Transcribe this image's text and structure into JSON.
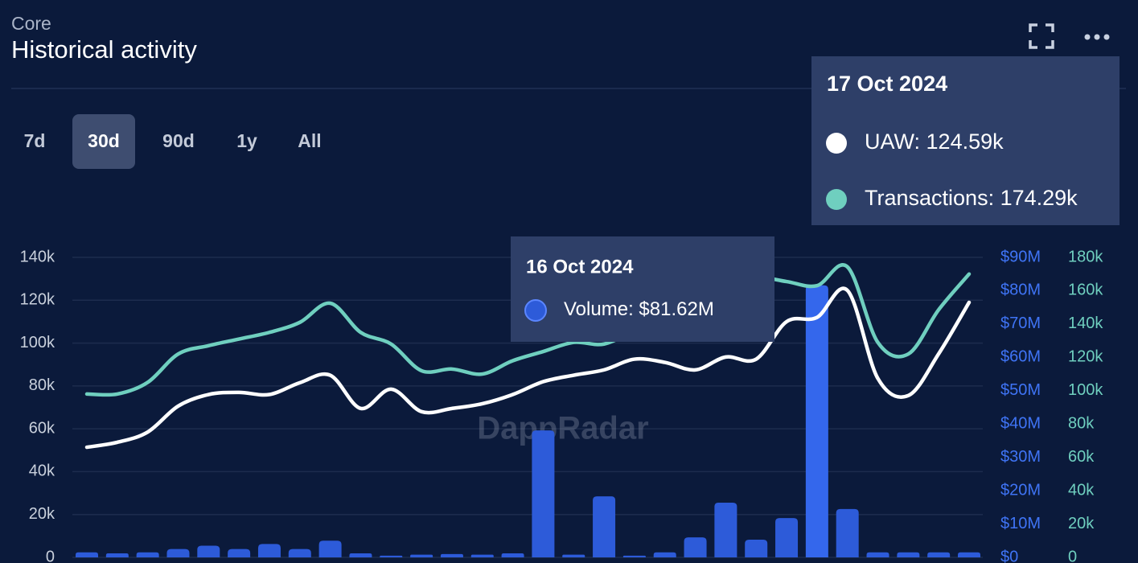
{
  "header": {
    "subtitle": "Core",
    "title": "Historical activity"
  },
  "controls": {
    "ranges": [
      "7d",
      "30d",
      "90d",
      "1y",
      "All"
    ],
    "active": 1
  },
  "watermark": "DappRadar",
  "chart_data": {
    "type": "combo",
    "categories": [
      null,
      null,
      null,
      null,
      null,
      null,
      null,
      null,
      null,
      null,
      null,
      null,
      null,
      null,
      null,
      null,
      null,
      null,
      null,
      null,
      null,
      null,
      null,
      null,
      "16 Oct 2024",
      "17 Oct 2024",
      null,
      null,
      null,
      null
    ],
    "series": [
      {
        "name": "UAW",
        "type": "line",
        "axis": "y",
        "color": "#ffffff",
        "values": [
          51400,
          53700,
          58500,
          70600,
          76000,
          77000,
          76000,
          81500,
          85000,
          69500,
          78500,
          68000,
          69500,
          71700,
          76000,
          82000,
          85000,
          87500,
          92500,
          91000,
          87500,
          93500,
          92500,
          110000,
          112000,
          124590,
          83500,
          75500,
          95000,
          119000
        ],
        "value_labels": [
          null,
          null,
          null,
          null,
          null,
          null,
          null,
          null,
          null,
          null,
          null,
          null,
          null,
          null,
          null,
          null,
          null,
          null,
          null,
          null,
          null,
          null,
          null,
          null,
          null,
          "124.59k",
          null,
          null,
          null,
          null
        ]
      },
      {
        "name": "Transactions",
        "type": "line",
        "axis": "y3",
        "color": "#6fcfbf",
        "values": [
          98000,
          98000,
          105000,
          122000,
          127000,
          131000,
          135000,
          141000,
          152500,
          135000,
          128000,
          112000,
          113000,
          110000,
          118000,
          123500,
          129000,
          128000,
          136500,
          146000,
          156000,
          163000,
          168000,
          165500,
          163000,
          174290,
          129000,
          122000,
          148600,
          170000
        ],
        "value_labels": [
          null,
          null,
          null,
          null,
          null,
          null,
          null,
          null,
          null,
          null,
          null,
          null,
          null,
          null,
          null,
          null,
          null,
          null,
          null,
          null,
          null,
          null,
          null,
          null,
          null,
          "174.29k",
          null,
          null,
          null,
          null
        ]
      },
      {
        "name": "Volume",
        "type": "bar",
        "axis": "y2",
        "color": "#2d5bd9",
        "values": [
          1500000,
          1200000,
          1500000,
          2500000,
          3500000,
          2500000,
          4000000,
          2500000,
          5000000,
          1200000,
          500000,
          800000,
          1000000,
          800000,
          1200000,
          38100000,
          800000,
          18300000,
          500000,
          1500000,
          6000000,
          16400000,
          5300000,
          11800000,
          81620000,
          14500000,
          1500000,
          1500000,
          1500000,
          1500000
        ],
        "value_labels": [
          null,
          null,
          null,
          null,
          null,
          null,
          null,
          null,
          null,
          null,
          null,
          null,
          null,
          null,
          null,
          null,
          null,
          null,
          null,
          null,
          null,
          null,
          null,
          null,
          "$81.62M",
          null,
          null,
          null,
          null,
          null
        ]
      }
    ],
    "ylim": [
      0,
      140000
    ],
    "yticks": [
      0,
      {
        "value": 20000,
        "label": "20k"
      },
      {
        "value": 40000,
        "label": "40k"
      },
      {
        "value": 60000,
        "label": "60k"
      },
      {
        "value": 80000,
        "label": "80k"
      },
      {
        "value": 100000,
        "label": "100k"
      },
      {
        "value": 120000,
        "label": "120k"
      },
      {
        "value": 140000,
        "label": "140k"
      }
    ],
    "y2lim": [
      0,
      90000000
    ],
    "y2ticks": [
      {
        "value": 0,
        "label": "$0"
      },
      {
        "value": 10000000,
        "label": "$10M"
      },
      {
        "value": 20000000,
        "label": "$20M"
      },
      {
        "value": 30000000,
        "label": "$30M"
      },
      {
        "value": 40000000,
        "label": "$40M"
      },
      {
        "value": 50000000,
        "label": "$50M"
      },
      {
        "value": 60000000,
        "label": "$60M"
      },
      {
        "value": 70000000,
        "label": "$70M"
      },
      {
        "value": 80000000,
        "label": "$80M"
      },
      {
        "value": 90000000,
        "label": "$90M"
      }
    ],
    "y3lim": [
      0,
      180000
    ],
    "y3ticks": [
      0,
      {
        "value": 20000,
        "label": "20k"
      },
      {
        "value": 40000,
        "label": "40k"
      },
      {
        "value": 60000,
        "label": "60k"
      },
      {
        "value": 80000,
        "label": "80k"
      },
      {
        "value": 100000,
        "label": "100k"
      },
      {
        "value": 120000,
        "label": "120k"
      },
      {
        "value": 140000,
        "label": "140k"
      },
      {
        "value": 160000,
        "label": "160k"
      },
      {
        "value": 180000,
        "label": "180k"
      }
    ],
    "grid": true,
    "tooltips": [
      {
        "index": 24,
        "series": [
          2
        ]
      },
      {
        "index": 25,
        "series": [
          0,
          1
        ]
      }
    ]
  }
}
